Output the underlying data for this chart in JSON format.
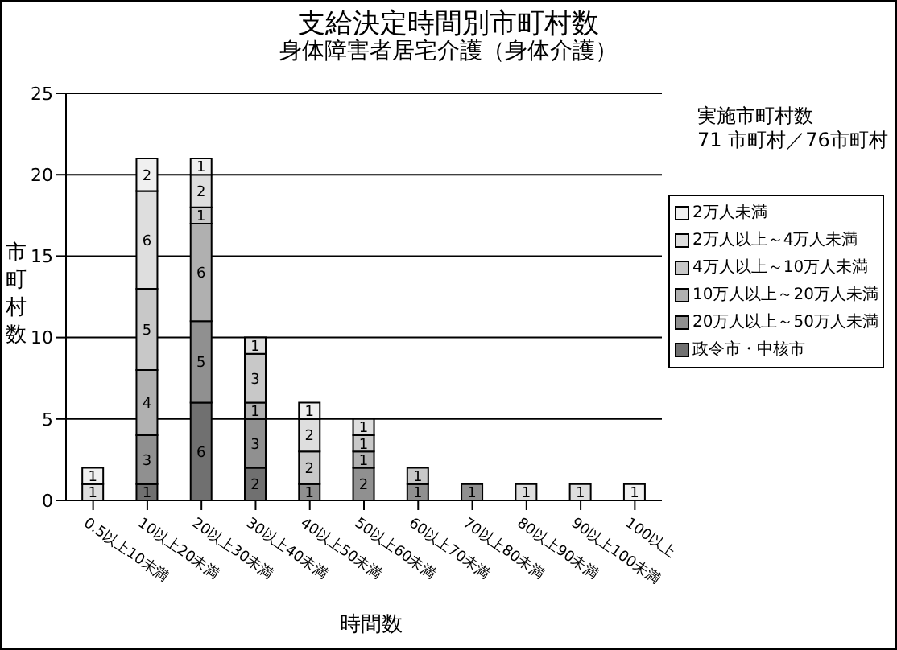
{
  "chart_data": {
    "type": "bar",
    "title": "支給決定時間別市町村数",
    "subtitle": "身体障害者居宅介護（身体介護）",
    "xlabel": "時間数",
    "ylabel": "市町村数",
    "annotations": [
      "実施市町村数",
      "71 市町村／76市町村"
    ],
    "categories": [
      "0.5以上10未満",
      "10以上20未満",
      "20以上30未満",
      "30以上40未満",
      "40以上50未満",
      "50以上60未満",
      "60以上70未満",
      "70以上80未満",
      "80以上90未満",
      "90以上100未満",
      "100以上"
    ],
    "stacked": true,
    "ylim": [
      0,
      25
    ],
    "yticks": [
      0,
      5,
      10,
      15,
      20,
      25
    ],
    "grid": "y",
    "legend": "right",
    "data_labels": true,
    "series": [
      {
        "name": "政令市・中核市",
        "color": "#707070",
        "values": [
          null,
          1,
          6,
          2,
          null,
          null,
          null,
          null,
          null,
          null,
          null
        ]
      },
      {
        "name": "20万人以上～50万人未満",
        "color": "#909090",
        "values": [
          null,
          3,
          5,
          3,
          1,
          2,
          1,
          1,
          null,
          null,
          null
        ]
      },
      {
        "name": "10万人以上～20万人未満",
        "color": "#b0b0b0",
        "values": [
          null,
          4,
          6,
          1,
          null,
          1,
          null,
          null,
          null,
          null,
          null
        ]
      },
      {
        "name": "4万人以上～10万人未満",
        "color": "#c8c8c8",
        "values": [
          null,
          5,
          1,
          3,
          2,
          1,
          1,
          null,
          null,
          null,
          null
        ]
      },
      {
        "name": "2万人以上～4万人未満",
        "color": "#dedede",
        "values": [
          1,
          6,
          2,
          1,
          2,
          1,
          null,
          null,
          1,
          1,
          null
        ]
      },
      {
        "name": "2万人未満",
        "color": "#f0f0f0",
        "values": [
          1,
          2,
          1,
          null,
          1,
          null,
          null,
          null,
          null,
          null,
          1
        ]
      }
    ]
  }
}
